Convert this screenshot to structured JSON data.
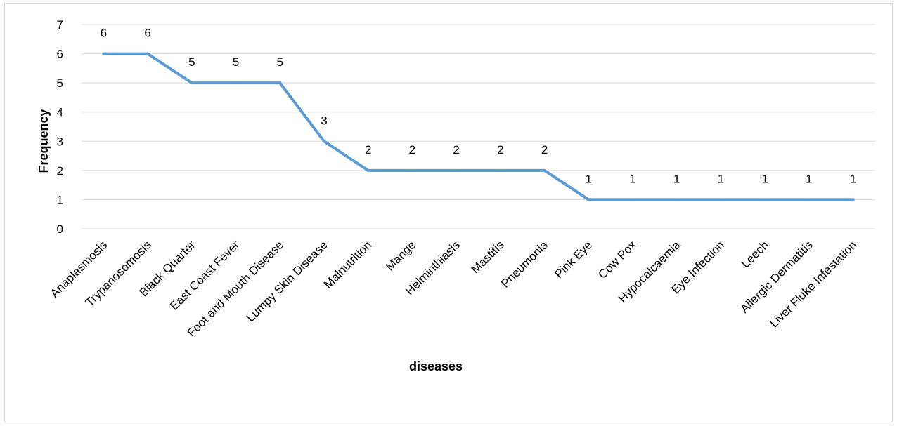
{
  "chart_data": {
    "type": "line",
    "categories": [
      "Anaplasmosis",
      "Trypanosomosis",
      "Black Quarter",
      "East Coast Fever",
      "Foot and Mouth Disease",
      "Lumpy Skin Disease",
      "Malnutrition",
      "Mange",
      "Helminthiasis",
      "Mastitis",
      "Pneumonia",
      "Pink Eye",
      "Cow Pox",
      "Hypocalcaemia",
      "Eye Infection",
      "Leech",
      "Allergic Dermatitis",
      "Liver Fluke Infestation"
    ],
    "series": [
      {
        "values": [
          6,
          6,
          5,
          5,
          5,
          3,
          2,
          2,
          2,
          2,
          2,
          1,
          1,
          1,
          1,
          1,
          1,
          1
        ]
      }
    ],
    "title": "",
    "xlabel": "diseases",
    "ylabel": "Frequency",
    "ylim": [
      0,
      7
    ],
    "yticks": [
      0,
      1,
      2,
      3,
      4,
      5,
      6,
      7
    ],
    "grid": true,
    "data_labels": true,
    "line_color": "#5b9bd5",
    "grid_color": "#d9d9d9"
  }
}
